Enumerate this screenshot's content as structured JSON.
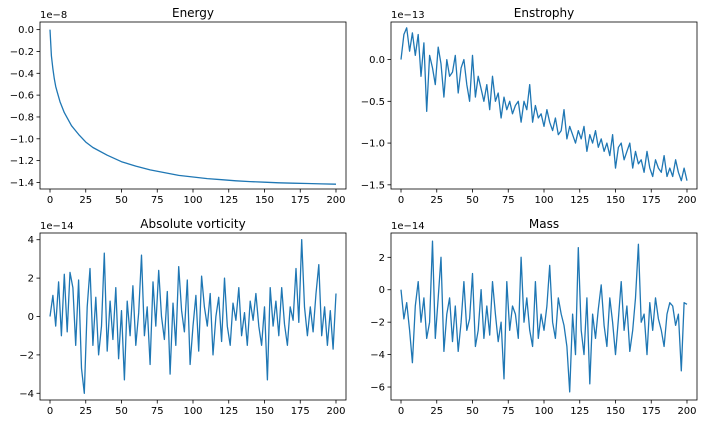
{
  "chart_data": [
    {
      "type": "line",
      "title": "Energy",
      "offset_label": "1e−8",
      "xlim": [
        -7,
        207
      ],
      "ylim": [
        -1.46,
        0.07
      ],
      "xticks": [
        0,
        25,
        50,
        75,
        100,
        125,
        150,
        175,
        200
      ],
      "xtick_labels": [
        "0",
        "25",
        "50",
        "75",
        "100",
        "125",
        "150",
        "175",
        "200"
      ],
      "yticks": [
        0.0,
        -0.2,
        -0.4,
        -0.6,
        -0.8,
        -1.0,
        -1.2,
        -1.4
      ],
      "ytick_labels": [
        "0.0",
        "−0.2",
        "−0.4",
        "−0.6",
        "−0.8",
        "−1.0",
        "−1.2",
        "−1.4"
      ],
      "series": [
        {
          "x": [
            0,
            1,
            2,
            3,
            4,
            5,
            7,
            10,
            15,
            20,
            25,
            30,
            40,
            50,
            60,
            70,
            80,
            90,
            100,
            110,
            120,
            130,
            140,
            150,
            160,
            170,
            180,
            190,
            200
          ],
          "y": [
            0.0,
            -0.24,
            -0.36,
            -0.45,
            -0.52,
            -0.57,
            -0.66,
            -0.76,
            -0.88,
            -0.96,
            -1.03,
            -1.08,
            -1.15,
            -1.21,
            -1.25,
            -1.285,
            -1.31,
            -1.335,
            -1.35,
            -1.365,
            -1.375,
            -1.385,
            -1.392,
            -1.398,
            -1.403,
            -1.407,
            -1.41,
            -1.413,
            -1.416
          ]
        }
      ]
    },
    {
      "type": "line",
      "title": "Enstrophy",
      "offset_label": "1e−13",
      "xlim": [
        -7,
        207
      ],
      "ylim": [
        -1.55,
        0.45
      ],
      "xticks": [
        0,
        25,
        50,
        75,
        100,
        125,
        150,
        175,
        200
      ],
      "xtick_labels": [
        "0",
        "25",
        "50",
        "75",
        "100",
        "125",
        "150",
        "175",
        "200"
      ],
      "yticks": [
        0.0,
        -0.5,
        -1.0,
        -1.5
      ],
      "ytick_labels": [
        "0.0",
        "−0.5",
        "−1.0",
        "−1.5"
      ],
      "series": [
        {
          "x": [
            0,
            2,
            4,
            6,
            8,
            10,
            12,
            14,
            16,
            18,
            20,
            22,
            24,
            26,
            28,
            30,
            32,
            34,
            36,
            38,
            40,
            42,
            44,
            46,
            48,
            50,
            52,
            54,
            56,
            58,
            60,
            62,
            64,
            66,
            68,
            70,
            72,
            74,
            76,
            78,
            80,
            82,
            84,
            86,
            88,
            90,
            92,
            94,
            96,
            98,
            100,
            102,
            104,
            106,
            108,
            110,
            112,
            114,
            116,
            118,
            120,
            122,
            124,
            126,
            128,
            130,
            132,
            134,
            136,
            138,
            140,
            142,
            144,
            146,
            148,
            150,
            152,
            154,
            156,
            158,
            160,
            162,
            164,
            166,
            168,
            170,
            172,
            174,
            176,
            178,
            180,
            182,
            184,
            186,
            188,
            190,
            192,
            194,
            196,
            198,
            200
          ],
          "y": [
            0.0,
            0.3,
            0.38,
            0.1,
            0.32,
            0.05,
            0.3,
            -0.2,
            0.2,
            -0.62,
            0.05,
            -0.1,
            -0.3,
            0.15,
            -0.05,
            -0.45,
            0.0,
            -0.2,
            -0.15,
            0.05,
            -0.4,
            -0.1,
            0.0,
            -0.3,
            -0.5,
            0.05,
            -0.45,
            -0.2,
            -0.35,
            -0.5,
            -0.3,
            -0.6,
            -0.2,
            -0.5,
            -0.4,
            -0.7,
            -0.45,
            -0.6,
            -0.5,
            -0.65,
            -0.55,
            -0.5,
            -0.75,
            -0.5,
            -0.6,
            -0.3,
            -0.75,
            -0.55,
            -0.7,
            -0.65,
            -0.8,
            -0.6,
            -0.75,
            -0.85,
            -0.7,
            -0.9,
            -0.85,
            -0.6,
            -0.95,
            -0.8,
            -0.9,
            -1.0,
            -0.85,
            -0.95,
            -0.8,
            -1.1,
            -0.9,
            -1.0,
            -0.85,
            -1.05,
            -0.95,
            -1.1,
            -1.0,
            -1.15,
            -0.9,
            -1.3,
            -1.05,
            -1.0,
            -1.2,
            -1.1,
            -1.0,
            -1.3,
            -1.1,
            -1.25,
            -1.2,
            -1.35,
            -1.1,
            -1.3,
            -1.4,
            -1.2,
            -1.3,
            -1.35,
            -1.15,
            -1.4,
            -1.3,
            -1.4,
            -1.2,
            -1.35,
            -1.45,
            -1.3,
            -1.45
          ]
        }
      ]
    },
    {
      "type": "line",
      "title": "Absolute vorticity",
      "offset_label": "1e−14",
      "xlim": [
        -7,
        207
      ],
      "ylim": [
        -4.35,
        4.35
      ],
      "xticks": [
        0,
        25,
        50,
        75,
        100,
        125,
        150,
        175,
        200
      ],
      "xtick_labels": [
        "0",
        "25",
        "50",
        "75",
        "100",
        "125",
        "150",
        "175",
        "200"
      ],
      "yticks": [
        4,
        2,
        0,
        -2,
        -4
      ],
      "ytick_labels": [
        "4",
        "2",
        "0",
        "−2",
        "−4"
      ],
      "series": [
        {
          "x": [
            0,
            2,
            4,
            6,
            8,
            10,
            12,
            14,
            16,
            18,
            20,
            22,
            24,
            26,
            28,
            30,
            32,
            34,
            36,
            38,
            40,
            42,
            44,
            46,
            48,
            50,
            52,
            54,
            56,
            58,
            60,
            62,
            64,
            66,
            68,
            70,
            72,
            74,
            76,
            78,
            80,
            82,
            84,
            86,
            88,
            90,
            92,
            94,
            96,
            98,
            100,
            102,
            104,
            106,
            108,
            110,
            112,
            114,
            116,
            118,
            120,
            122,
            124,
            126,
            128,
            130,
            132,
            134,
            136,
            138,
            140,
            142,
            144,
            146,
            148,
            150,
            152,
            154,
            156,
            158,
            160,
            162,
            164,
            166,
            168,
            170,
            172,
            174,
            176,
            178,
            180,
            182,
            184,
            186,
            188,
            190,
            192,
            194,
            196,
            198,
            200
          ],
          "y": [
            0.0,
            1.1,
            -0.5,
            1.8,
            -1.0,
            2.2,
            -0.8,
            2.3,
            1.5,
            -1.5,
            1.9,
            -2.7,
            -4.0,
            0.5,
            2.5,
            -1.5,
            1.0,
            -2.0,
            -0.5,
            3.3,
            -1.8,
            0.8,
            -1.2,
            1.5,
            -2.2,
            0.3,
            -3.3,
            0.8,
            -1.0,
            1.6,
            -1.5,
            0.2,
            3.2,
            -1.0,
            0.5,
            -2.5,
            1.8,
            -0.5,
            2.4,
            0.0,
            -1.2,
            1.3,
            -3.0,
            0.7,
            -1.5,
            2.6,
            0.3,
            -0.8,
            1.9,
            -2.5,
            -0.5,
            1.1,
            -1.8,
            2.1,
            0.5,
            -0.5,
            1.2,
            -2.0,
            0.0,
            1.0,
            -1.3,
            2.0,
            -0.5,
            -1.5,
            0.7,
            -0.2,
            1.5,
            -1.0,
            0.2,
            -1.5,
            0.8,
            -0.2,
            1.2,
            -0.5,
            -1.5,
            0.5,
            -3.3,
            1.5,
            -0.5,
            0.8,
            -1.0,
            1.5,
            -0.4,
            -1.5,
            0.5,
            -0.2,
            2.5,
            -0.3,
            4.0,
            0.5,
            -1.0,
            0.5,
            -0.8,
            1.2,
            2.7,
            -1.0,
            0.5,
            -1.5,
            0.3,
            -1.7,
            1.2
          ]
        }
      ]
    },
    {
      "type": "line",
      "title": "Mass",
      "offset_label": "1e−14",
      "xlim": [
        -7,
        207
      ],
      "ylim": [
        -6.8,
        3.5
      ],
      "xticks": [
        0,
        25,
        50,
        75,
        100,
        125,
        150,
        175,
        200
      ],
      "xtick_labels": [
        "0",
        "25",
        "50",
        "75",
        "100",
        "125",
        "150",
        "175",
        "200"
      ],
      "yticks": [
        2,
        0,
        -2,
        -4,
        -6
      ],
      "ytick_labels": [
        "2",
        "0",
        "−2",
        "−4",
        "−6"
      ],
      "series": [
        {
          "x": [
            0,
            2,
            4,
            6,
            8,
            10,
            12,
            14,
            16,
            18,
            20,
            22,
            24,
            26,
            28,
            30,
            32,
            34,
            36,
            38,
            40,
            42,
            44,
            46,
            48,
            50,
            52,
            54,
            56,
            58,
            60,
            62,
            64,
            66,
            68,
            70,
            72,
            74,
            76,
            78,
            80,
            82,
            84,
            86,
            88,
            90,
            92,
            94,
            96,
            98,
            100,
            102,
            104,
            106,
            108,
            110,
            112,
            114,
            116,
            118,
            120,
            122,
            124,
            126,
            128,
            130,
            132,
            134,
            136,
            138,
            140,
            142,
            144,
            146,
            148,
            150,
            152,
            154,
            156,
            158,
            160,
            162,
            164,
            166,
            168,
            170,
            172,
            174,
            176,
            178,
            180,
            182,
            184,
            186,
            188,
            190,
            192,
            194,
            196,
            198,
            200
          ],
          "y": [
            0.0,
            -1.8,
            -0.8,
            -2.5,
            -4.5,
            -1.0,
            0.5,
            -2.0,
            -0.5,
            -3.0,
            -2.0,
            3.0,
            -3.0,
            -0.5,
            2.0,
            -3.8,
            -1.5,
            -0.5,
            -3.2,
            -1.0,
            -3.8,
            -2.0,
            0.5,
            -2.5,
            -1.8,
            1.0,
            -3.5,
            -2.5,
            0.0,
            -3.0,
            -1.0,
            -2.8,
            0.5,
            -1.5,
            -3.2,
            -2.0,
            -5.5,
            0.5,
            -2.5,
            -1.0,
            -1.5,
            -3.0,
            2.0,
            -2.0,
            -0.5,
            -2.5,
            -3.5,
            0.5,
            -3.0,
            -1.5,
            -2.5,
            -1.0,
            1.5,
            -2.0,
            -3.0,
            -0.5,
            -1.5,
            -2.2,
            -3.5,
            -6.3,
            -1.5,
            -4.0,
            2.6,
            -2.5,
            -4.0,
            -0.5,
            -5.8,
            -1.5,
            -3.0,
            -1.2,
            0.3,
            -2.2,
            -3.5,
            -0.5,
            -2.0,
            -4.0,
            -1.8,
            0.5,
            -2.5,
            -1.0,
            -3.8,
            -2.5,
            -0.5,
            2.8,
            -2.0,
            -1.5,
            -4.0,
            -0.8,
            -2.5,
            -0.5,
            -1.8,
            -2.5,
            -3.5,
            -1.5,
            -0.8,
            -1.0,
            -2.2,
            -1.5,
            -5.0,
            -0.8,
            -0.9
          ]
        }
      ]
    }
  ]
}
